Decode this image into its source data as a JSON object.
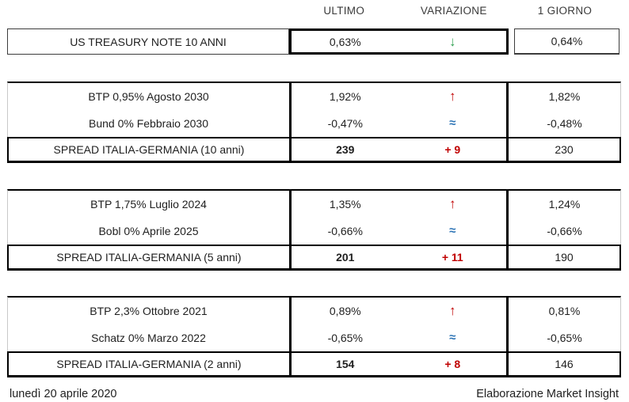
{
  "header": {
    "columns": [
      "ULTIMO",
      "VARIAZIONE",
      "1 GIORNO"
    ]
  },
  "icons": {
    "up": "↑",
    "down": "↓",
    "flat": "≈"
  },
  "colors": {
    "trend_up_red": "#c00000",
    "trend_down_green": "#2e9e4f",
    "trend_flat_blue": "#2e75b6",
    "spread_change_red": "#c00000"
  },
  "us_row": {
    "label": "US TREASURY NOTE 10 ANNI",
    "ultimo": "0,63%",
    "giorno": "0,64%"
  },
  "blocks": [
    {
      "rows": [
        {
          "label": "BTP 0,95% Agosto 2030",
          "ultimo": "1,92%",
          "giorno": "1,82%"
        },
        {
          "label": "Bund 0% Febbraio 2030",
          "ultimo": "-0,47%",
          "giorno": "-0,48%"
        }
      ],
      "spread": {
        "label": "SPREAD ITALIA-GERMANIA (10 anni)",
        "ultimo": "239",
        "variazione": "+ 9",
        "giorno": "230"
      }
    },
    {
      "rows": [
        {
          "label": "BTP 1,75% Luglio 2024",
          "ultimo": "1,35%",
          "giorno": "1,24%"
        },
        {
          "label": "Bobl 0% Aprile 2025",
          "ultimo": "-0,66%",
          "giorno": "-0,66%"
        }
      ],
      "spread": {
        "label": "SPREAD ITALIA-GERMANIA (5 anni)",
        "ultimo": "201",
        "variazione": "+ 11",
        "giorno": "190"
      }
    },
    {
      "rows": [
        {
          "label": "BTP 2,3% Ottobre 2021",
          "ultimo": "0,89%",
          "giorno": "0,81%"
        },
        {
          "label": "Schatz 0% Marzo 2022",
          "ultimo": "-0,65%",
          "giorno": "-0,65%"
        }
      ],
      "spread": {
        "label": "SPREAD ITALIA-GERMANIA (2 anni)",
        "ultimo": "154",
        "variazione": "+ 8",
        "giorno": "146"
      }
    }
  ],
  "footer": {
    "date": "lunedì 20 aprile 2020",
    "credit": "Elaborazione Market Insight"
  }
}
